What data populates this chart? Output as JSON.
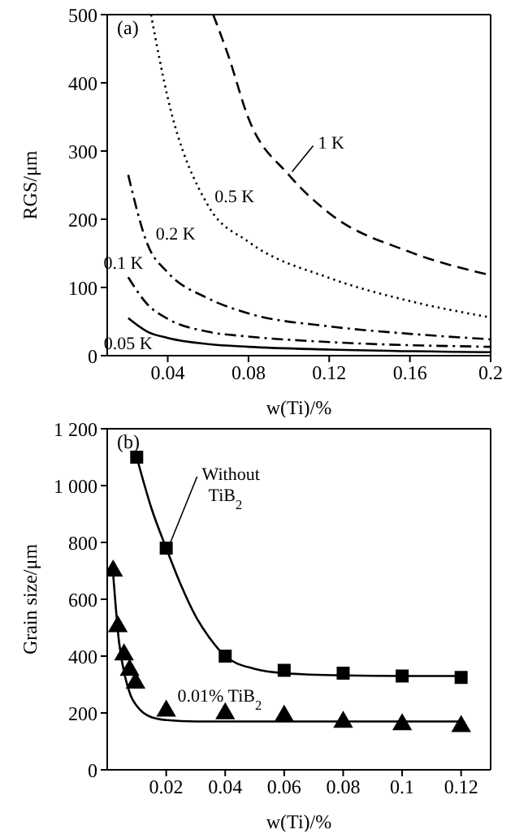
{
  "chart_data": [
    {
      "type": "line",
      "xlabel": "w(Ti)/%",
      "ylabel": "RGS/μm",
      "annotations": [
        "(a)"
      ],
      "xlim": [
        0.01,
        0.2
      ],
      "xticks": [
        0.04,
        0.08,
        0.12,
        0.16,
        0.2
      ],
      "ylim": [
        0,
        500
      ],
      "yticks": [
        0,
        100,
        200,
        300,
        400,
        500
      ],
      "grid": false,
      "legend": false,
      "marker": "none",
      "series": [
        {
          "name": "1 K",
          "color": "#000000",
          "line_style": "dashed",
          "x": [
            0.0625,
            0.07,
            0.08,
            0.1,
            0.12,
            0.16,
            0.2
          ],
          "values": [
            500,
            440,
            348,
            265,
            209,
            152,
            118
          ]
        },
        {
          "name": "0.5 K",
          "color": "#000000",
          "line_style": "dotted",
          "x": [
            0.0317,
            0.04,
            0.06,
            0.08,
            0.12,
            0.16,
            0.2
          ],
          "values": [
            500,
            378,
            220,
            167,
            114,
            80,
            56
          ]
        },
        {
          "name": "0.2 K",
          "color": "#000000",
          "line_style": "dashdot",
          "x": [
            0.0204,
            0.03,
            0.04,
            0.06,
            0.08,
            0.12,
            0.16,
            0.2
          ],
          "values": [
            265,
            163,
            122,
            84,
            62,
            43,
            32,
            24
          ]
        },
        {
          "name": "0.1 K",
          "color": "#000000",
          "line_style": "dashdot",
          "x": [
            0.0204,
            0.03,
            0.04,
            0.06,
            0.08,
            0.12,
            0.2
          ],
          "values": [
            115,
            75,
            54,
            35,
            28,
            20,
            13
          ]
        },
        {
          "name": "0.05 K",
          "color": "#000000",
          "line_style": "solid",
          "x": [
            0.0204,
            0.03,
            0.04,
            0.06,
            0.08,
            0.12,
            0.2
          ],
          "values": [
            55,
            35,
            26,
            17,
            13,
            9,
            5
          ]
        }
      ]
    },
    {
      "type": "scatter",
      "xlabel": "w(Ti)/%",
      "ylabel": "Grain size/μm",
      "annotations": [
        "(b)"
      ],
      "xlim": [
        0,
        0.13
      ],
      "xticks": [
        0.02,
        0.04,
        0.06,
        0.08,
        0.1,
        0.12
      ],
      "ylim": [
        0,
        1200
      ],
      "yticks": [
        0,
        200,
        400,
        600,
        800,
        {
          "value": 1000,
          "label": "1 000"
        },
        {
          "value": 1200,
          "label": "1 200"
        }
      ],
      "grid": false,
      "legend": false,
      "series": [
        {
          "name": "Without TiB$_{2}$",
          "color": "#000000",
          "marker": "square",
          "x": [
            0.01,
            0.02,
            0.04,
            0.06,
            0.08,
            0.1,
            0.12
          ],
          "values": [
            1100,
            780,
            400,
            350,
            340,
            330,
            325
          ]
        },
        {
          "name": "0.01% TiB$_{2}$",
          "color": "#000000",
          "marker": "triangle",
          "x": [
            0.002,
            0.0036,
            0.0057,
            0.0076,
            0.0096,
            0.02,
            0.04,
            0.06,
            0.08,
            0.1,
            0.12
          ],
          "values": [
            700,
            504,
            405,
            351,
            306,
            207,
            198,
            189,
            168,
            159,
            153
          ]
        },
        {
          "type": "line",
          "color": "#000000",
          "marker": "none",
          "line_style": "solid",
          "x": [
            0.01,
            0.015,
            0.02,
            0.025,
            0.03,
            0.035,
            0.04,
            0.05,
            0.06,
            0.08,
            0.1,
            0.12
          ],
          "values": [
            1100,
            920,
            780,
            650,
            540,
            460,
            400,
            355,
            340,
            332,
            330,
            330
          ]
        },
        {
          "type": "line",
          "color": "#000000",
          "marker": "none",
          "line_style": "solid",
          "x": [
            0.002,
            0.004,
            0.006,
            0.008,
            0.01,
            0.015,
            0.02,
            0.03,
            0.06,
            0.12
          ],
          "values": [
            690,
            450,
            330,
            260,
            225,
            185,
            175,
            170,
            170,
            170
          ]
        }
      ]
    }
  ]
}
